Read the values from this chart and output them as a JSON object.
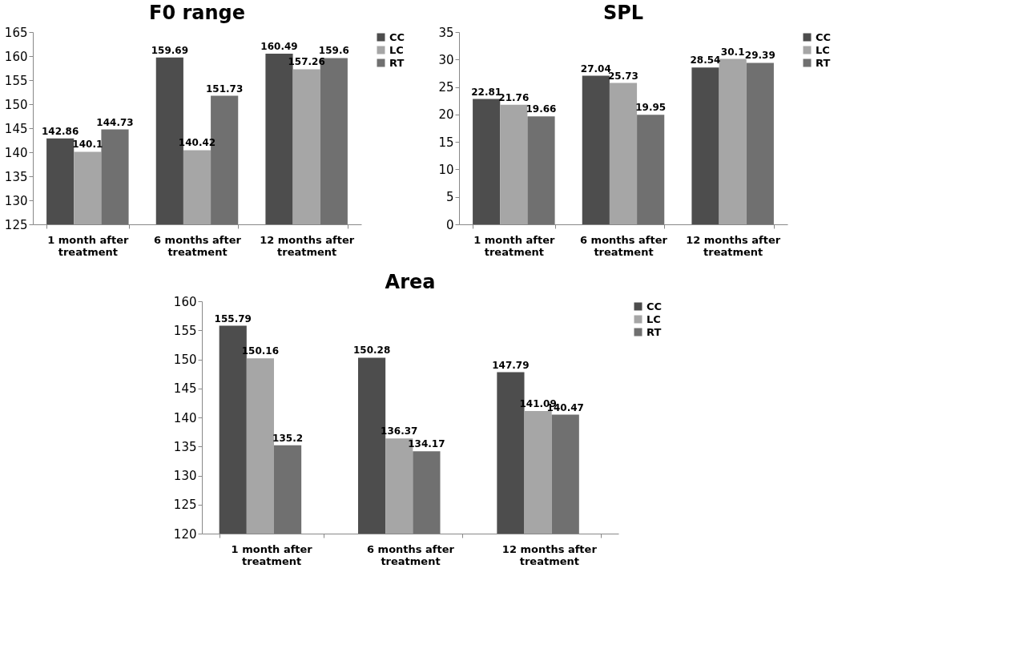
{
  "chart_data": [
    {
      "type": "bar",
      "title": "F0 range",
      "categories": [
        "1 month after treatment",
        "6 months after treatment",
        "12 months after treatment"
      ],
      "series": [
        {
          "name": "CC",
          "color": "#4d4d4d",
          "values": [
            142.86,
            159.69,
            160.49
          ]
        },
        {
          "name": "LC",
          "color": "#a6a6a6",
          "values": [
            140.1,
            140.42,
            157.26
          ]
        },
        {
          "name": "RT",
          "color": "#707070",
          "values": [
            144.73,
            151.73,
            159.6
          ]
        }
      ],
      "ylim": [
        125,
        165
      ],
      "yticks": [
        125,
        130,
        135,
        140,
        145,
        150,
        155,
        160,
        165
      ],
      "grid": false,
      "legend": "right",
      "data_labels": true
    },
    {
      "type": "bar",
      "title": "SPL",
      "categories": [
        "1 month after treatment",
        "6 months after treatment",
        "12 months after treatment"
      ],
      "series": [
        {
          "name": "CC",
          "color": "#4d4d4d",
          "values": [
            22.81,
            27.04,
            28.54
          ]
        },
        {
          "name": "LC",
          "color": "#a6a6a6",
          "values": [
            21.76,
            25.73,
            30.1
          ]
        },
        {
          "name": "RT",
          "color": "#707070",
          "values": [
            19.66,
            19.95,
            29.39
          ]
        }
      ],
      "ylim": [
        0,
        35
      ],
      "yticks": [
        0,
        5,
        10,
        15,
        20,
        25,
        30,
        35
      ],
      "grid": false,
      "legend": "right",
      "data_labels": true
    },
    {
      "type": "bar",
      "title": "Area",
      "categories": [
        "1 month after treatment",
        "6 months after treatment",
        "12 months after treatment"
      ],
      "series": [
        {
          "name": "CC",
          "color": "#4d4d4d",
          "values": [
            155.79,
            150.28,
            147.79
          ]
        },
        {
          "name": "LC",
          "color": "#a6a6a6",
          "values": [
            150.16,
            136.37,
            141.09
          ]
        },
        {
          "name": "RT",
          "color": "#707070",
          "values": [
            135.2,
            134.17,
            140.47
          ]
        }
      ],
      "ylim": [
        120,
        160
      ],
      "yticks": [
        120,
        125,
        130,
        135,
        140,
        145,
        150,
        155,
        160
      ],
      "grid": false,
      "legend": "right",
      "data_labels": true
    }
  ]
}
